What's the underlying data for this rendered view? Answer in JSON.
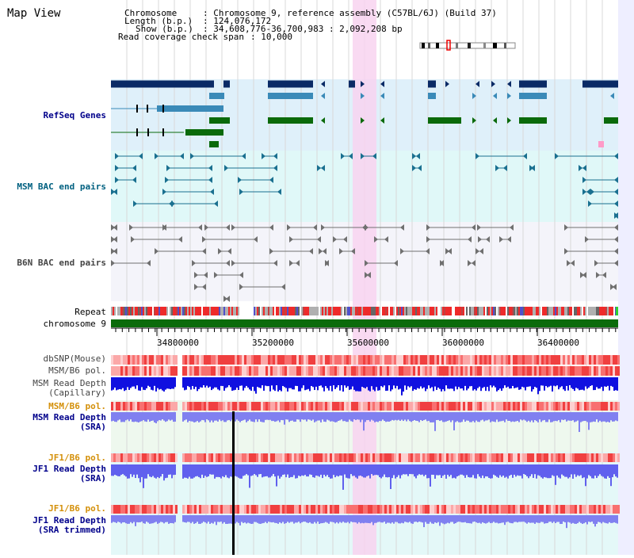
{
  "title": "Map View",
  "info": {
    "chromosome_key": "Chromosome",
    "chromosome_val": ": Chromosome 9, reference assembly (C57BL/6J) (Build 37)",
    "length_key": "Length (b.p.)",
    "length_val": ": 124,076,172",
    "show_key": "Show (b.p.)",
    "show_val": ": 34,608,776-36,700,983 : 2,092,208 bp",
    "span_key": "Read coverage check span",
    "span_val": ": 10,000"
  },
  "tracks": {
    "refseq": "RefSeq Genes",
    "msm_bac": "MSM BAC end pairs",
    "b6n_bac": "B6N BAC end pairs",
    "repeat": "Repeat",
    "chromosome": "chromosome 9",
    "dbsnp": "dbSNP(Mouse)",
    "msm_pol": "MSM/B6 pol.",
    "msm_depth_cap_1": "MSM Read Depth",
    "msm_depth_cap_2": "(Capillary)",
    "msm_pol_2": "MSM/B6 pol.",
    "msm_depth_sra_1": "MSM Read Depth",
    "msm_depth_sra_2": "(SRA)",
    "jf1_pol": "JF1/B6 pol.",
    "jf1_depth_1": "JF1 Read Depth",
    "jf1_depth_2": "(SRA)",
    "jf1_pol_2": "JF1/B6 pol.",
    "jf1_trim_1": "JF1 Read Depth",
    "jf1_trim_2": "(SRA trimmed)"
  },
  "axis": {
    "ticks": [
      "34800000",
      "35200000",
      "35600000",
      "36000000",
      "36400000"
    ]
  },
  "colors": {
    "refseq_bg": "#dff0fa",
    "msm_bg": "#e0f8f8",
    "b6n_bg": "#f4f4fa",
    "highlight": "#f8d4f0",
    "chromosome_bar": "#0b6b0b",
    "label_blue": "#00008b",
    "label_teal": "#006080",
    "label_gray": "#444444",
    "label_orange": "#d4900a"
  }
}
